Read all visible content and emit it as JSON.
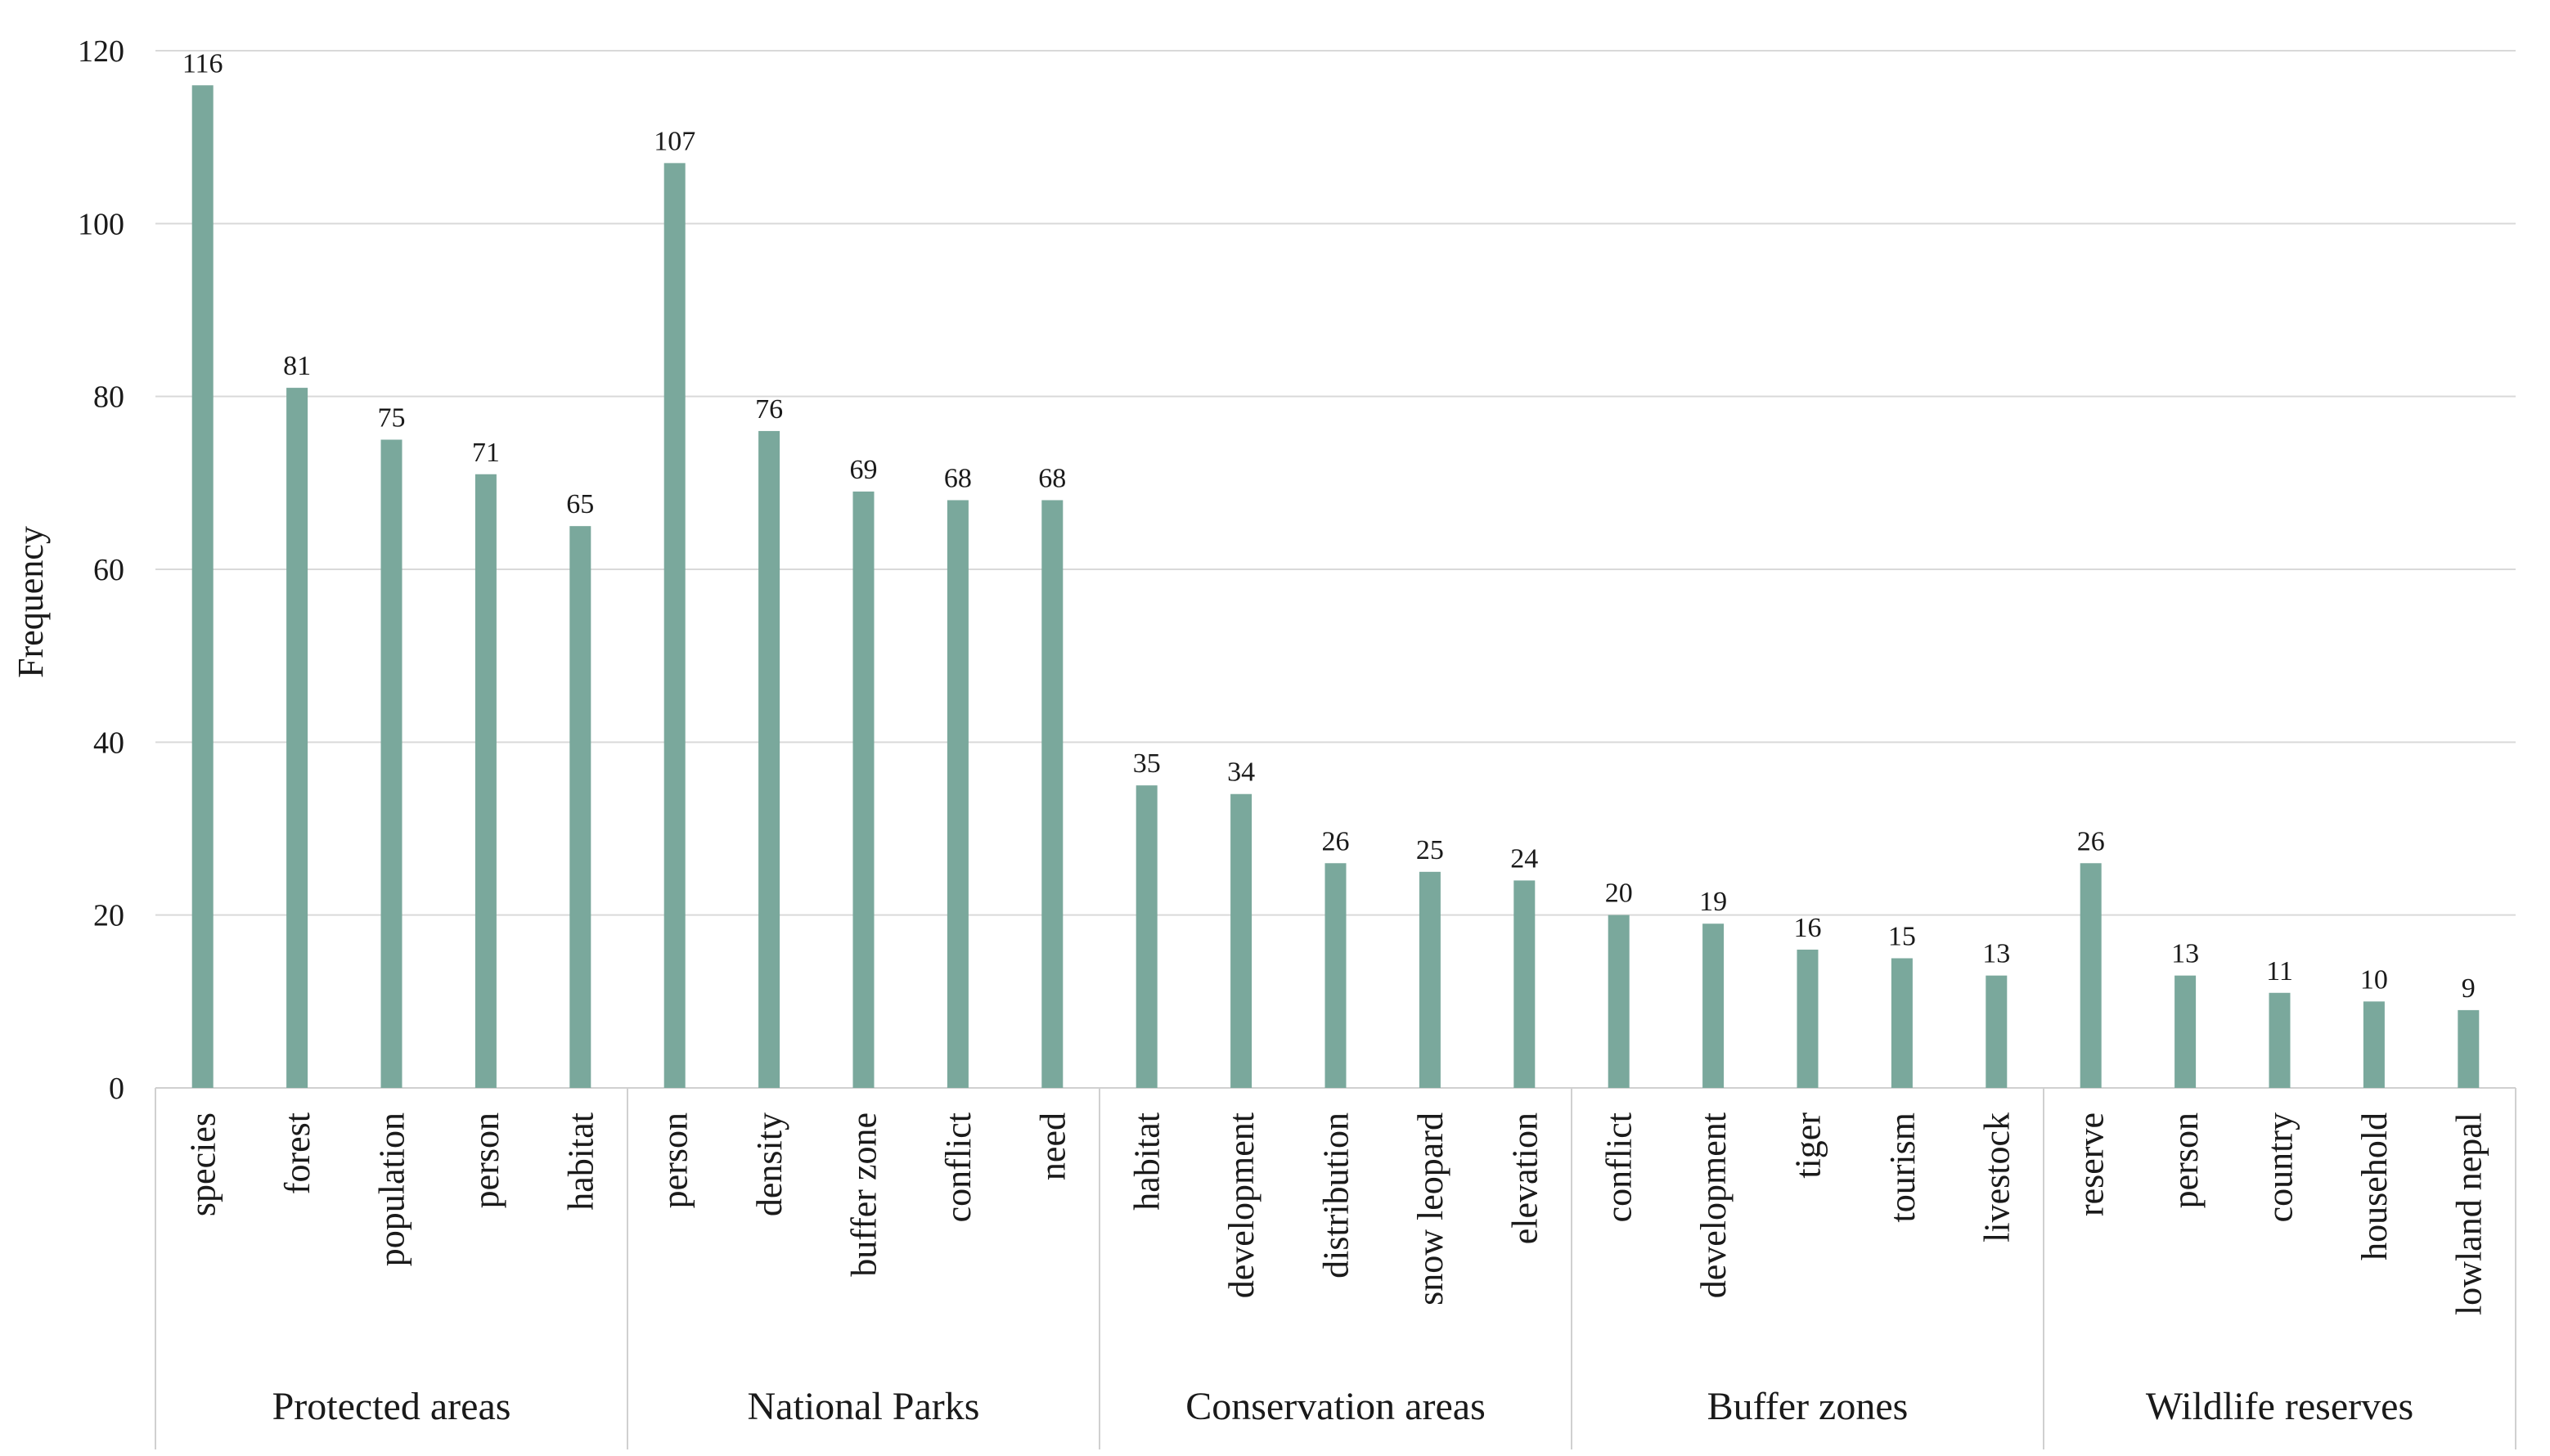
{
  "chart_data": {
    "type": "bar",
    "title": "",
    "xlabel": "",
    "ylabel": "Frequency",
    "ylim": [
      0,
      120
    ],
    "yticks": [
      0,
      20,
      40,
      60,
      80,
      100,
      120
    ],
    "grid": true,
    "bar_color": "#7aa89c",
    "groups": [
      {
        "name": "Protected areas",
        "categories": [
          "species",
          "forest",
          "population",
          "person",
          "habitat"
        ],
        "values": [
          116,
          81,
          75,
          71,
          65
        ]
      },
      {
        "name": "National Parks",
        "categories": [
          "person",
          "density",
          "buffer zone",
          "conflict",
          "need"
        ],
        "values": [
          107,
          76,
          69,
          68,
          68
        ]
      },
      {
        "name": "Conservation areas",
        "categories": [
          "habitat",
          "development",
          "distribution",
          "snow leopard",
          "elevation"
        ],
        "values": [
          35,
          34,
          26,
          25,
          24
        ]
      },
      {
        "name": "Buffer zones",
        "categories": [
          "conflict",
          "development",
          "tiger",
          "tourism",
          "livestock"
        ],
        "values": [
          20,
          19,
          16,
          15,
          13
        ]
      },
      {
        "name": "Wildlife reserves",
        "categories": [
          "reserve",
          "person",
          "country",
          "household",
          "lowland nepal"
        ],
        "values": [
          26,
          13,
          11,
          10,
          9
        ]
      }
    ]
  }
}
